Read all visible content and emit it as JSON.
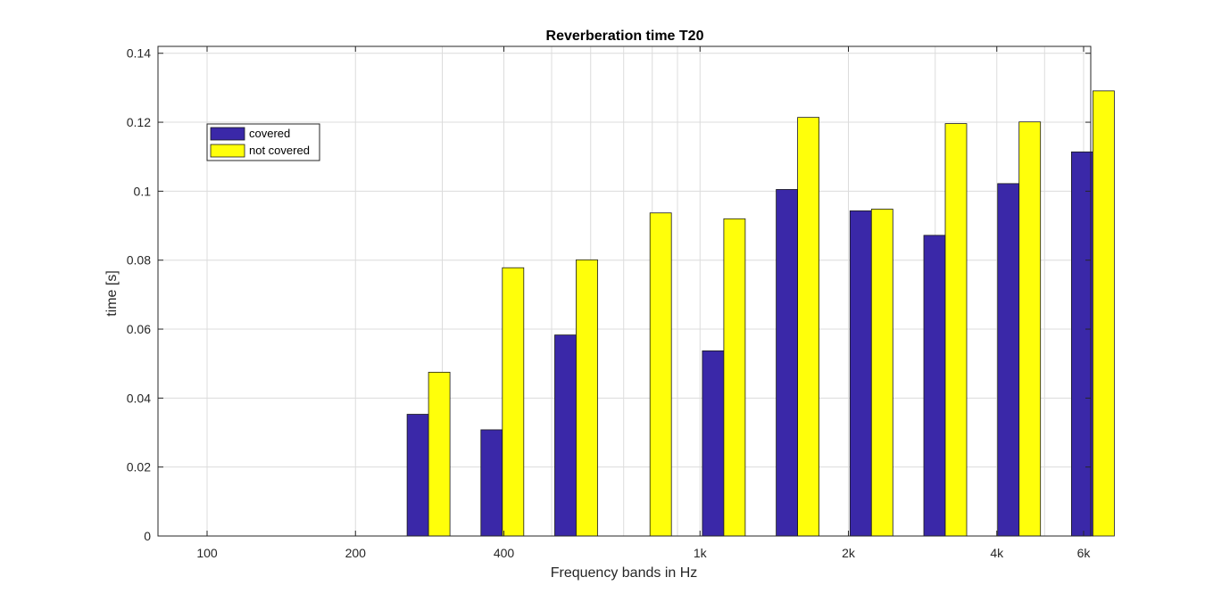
{
  "chart_data": {
    "type": "bar",
    "title": "Reverberation time T20",
    "xlabel": "Frequency bands in Hz",
    "ylabel": "time [s]",
    "ylim": [
      0,
      0.142
    ],
    "yticks": [
      0,
      0.02,
      0.04,
      0.06,
      0.08,
      0.1,
      0.12,
      0.14
    ],
    "ytick_labels": [
      "0",
      "0.02",
      "0.04",
      "0.06",
      "0.08",
      "0.1",
      "0.12",
      "0.14"
    ],
    "xtick_labels": [
      "100",
      "200",
      "400",
      "1k",
      "2k",
      "4k",
      "6k"
    ],
    "grid": true,
    "legend_position": "top-left",
    "series": [
      {
        "name": "covered",
        "color": "#3a28a8",
        "values": [
          0.0,
          0.0,
          0.0,
          0.0353,
          0.0308,
          0.0583,
          0.0,
          0.0537,
          0.1005,
          0.0943,
          0.0872,
          0.1022,
          0.1114
        ]
      },
      {
        "name": "not covered",
        "color": "#ffff0a",
        "values": [
          0.0,
          0.0,
          0.0,
          0.0475,
          0.0778,
          0.0801,
          0.0937,
          0.092,
          0.1214,
          0.0948,
          0.1196,
          0.1201,
          0.1291
        ]
      }
    ]
  }
}
